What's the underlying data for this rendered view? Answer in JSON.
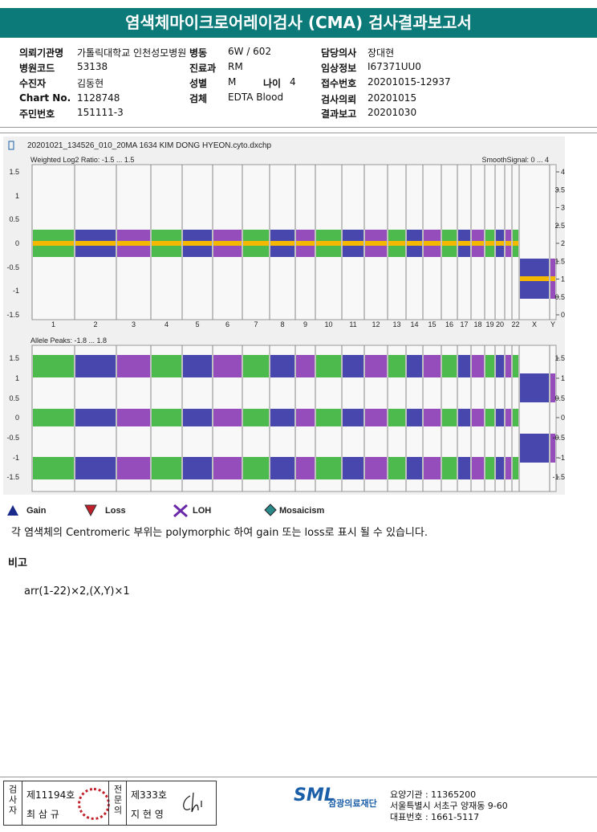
{
  "header": {
    "title": "염색체마이크로어레이검사 (CMA) 검사결과보고서"
  },
  "info": {
    "columns": [
      [
        {
          "label": "의뢰기관명",
          "value": "가톨릭대학교 인천성모병원"
        },
        {
          "label": "병원코드",
          "value": "53138"
        },
        {
          "label": "수진자",
          "value": "김동현"
        },
        {
          "label": "Chart No.",
          "value": "1128748"
        },
        {
          "label": "주민번호",
          "value": "151111-3"
        }
      ],
      [
        {
          "label": "병동",
          "value": "6W / 602"
        },
        {
          "label": "진료과",
          "value": "RM"
        },
        {
          "label": "성별",
          "value": "M"
        },
        {
          "label": "검체",
          "value": "EDTA Blood"
        }
      ],
      [
        {
          "label": "담당의사",
          "value": "장대현"
        },
        {
          "label": "임상정보",
          "value": "I67371UU0"
        },
        {
          "label": "접수번호",
          "value": "20201015-12937"
        },
        {
          "label": "검사의뢰",
          "value": "20201015"
        },
        {
          "label": "결과보고",
          "value": "20201030"
        }
      ]
    ],
    "age": {
      "label": "나이",
      "value": "4"
    }
  },
  "plot": {
    "file": "20201021_134526_010_20MA 1634 KIM DONG HYEON.cyto.dxchp",
    "top": {
      "label": "Weighted Log2 Ratio: -1.5 ... 1.5",
      "smooth": "SmoothSignal: 0 ... 4",
      "left_ticks": [
        "1.5",
        "1",
        "0.5",
        "0",
        "-0.5",
        "-1",
        "-1.5"
      ],
      "right_ticks": [
        "4",
        "3.5",
        "3",
        "2.5",
        "2",
        "1.5",
        "1",
        "0.5",
        "0"
      ]
    },
    "bottom": {
      "label": "Allele Peaks: -1.8 ... 1.8",
      "left_ticks": [
        "1.5",
        "1",
        "0.5",
        "0",
        "-0.5",
        "-1",
        "-1.5"
      ],
      "right_ticks": [
        "1.5",
        "1",
        "0.5",
        "0",
        "-0.5",
        "-1",
        "-1.5"
      ]
    },
    "chromosomes": [
      "1",
      "2",
      "3",
      "4",
      "5",
      "6",
      "7",
      "8",
      "9",
      "10",
      "11",
      "12",
      "13",
      "14",
      "15",
      "16",
      "17",
      "18",
      "19",
      "20",
      null,
      "22",
      "X",
      "Y"
    ]
  },
  "legend": [
    "Gain",
    "Loss",
    "LOH",
    "Mosaicism"
  ],
  "note": "각 염색체의 Centromeric 부위는 polymorphic 하여 gain 또는 loss로 표시 될 수 있습니다.",
  "remarks": {
    "title": "비고",
    "text": "arr(1-22)×2,(X,Y)×1"
  },
  "footer": {
    "examiner": {
      "role": "검사자",
      "license": "제11194호",
      "name": "최 삼 규"
    },
    "reader": {
      "role": "전문의",
      "license": "제333호",
      "name": "지 현 영"
    },
    "org": {
      "logo": "SML",
      "name": "삼광의료재단",
      "code": "요양기관 : 11365200",
      "address": "서울특별시 서초구 양재동 9-60",
      "phone": "대표번호 : 1661-5117"
    }
  }
}
